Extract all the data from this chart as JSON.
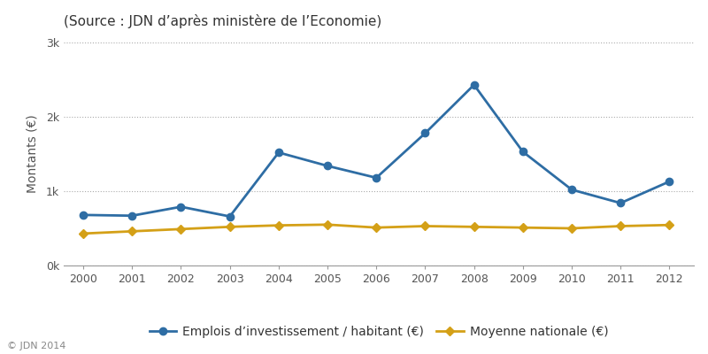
{
  "years": [
    2000,
    2001,
    2002,
    2003,
    2004,
    2005,
    2006,
    2007,
    2008,
    2009,
    2010,
    2011,
    2012
  ],
  "emplois": [
    680,
    670,
    790,
    660,
    1520,
    1340,
    1180,
    1780,
    2430,
    1530,
    1020,
    840,
    1130
  ],
  "moyenne": [
    430,
    460,
    490,
    520,
    540,
    550,
    510,
    530,
    520,
    510,
    500,
    530,
    545
  ],
  "emplois_color": "#2E6DA4",
  "moyenne_color": "#D4A017",
  "title": "(Source : JDN d’après ministère de l’Economie)",
  "ylabel": "Montants (€)",
  "ylim": [
    0,
    3000
  ],
  "yticks": [
    0,
    1000,
    2000,
    3000
  ],
  "ytick_labels": [
    "0k",
    "1k",
    "2k",
    "3k"
  ],
  "copyright": "© JDN 2014",
  "legend_emplois": "Emplois d’investissement / habitant (€)",
  "legend_moyenne": "Moyenne nationale (€)",
  "bg_color": "#ffffff",
  "plot_bg_color": "#ffffff",
  "grid_color": "#aaaaaa",
  "title_fontsize": 11,
  "label_fontsize": 10,
  "tick_fontsize": 9,
  "legend_fontsize": 10,
  "copyright_fontsize": 8,
  "line_width": 2.0,
  "marker_size_emplois": 6,
  "marker_size_moyenne": 5
}
